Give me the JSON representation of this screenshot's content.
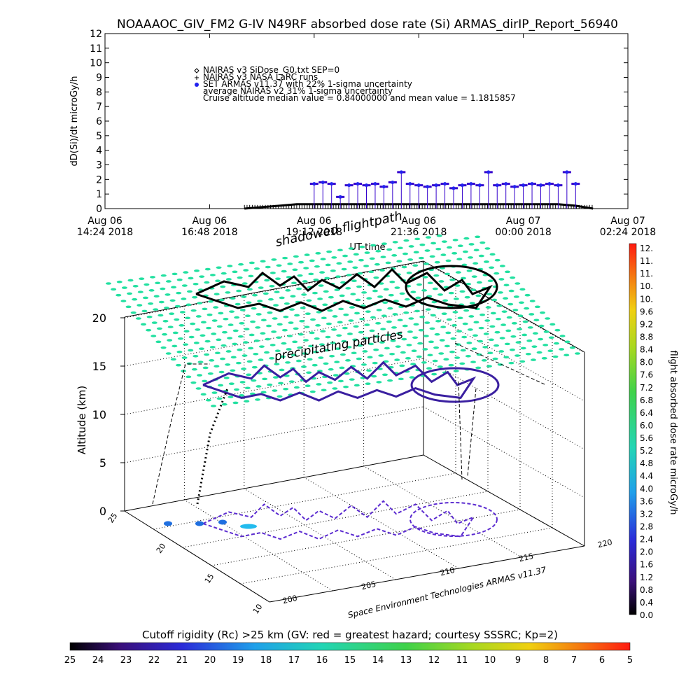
{
  "header": {
    "title": "NOAAAOC_GIV_FM2 G-IV    N49RF  absorbed dose rate (Si) ARMAS_dirIP_Report_56940"
  },
  "top_chart": {
    "ylabel": "dD(Si)/dt microGy/h",
    "xlabel": "UT time",
    "legend": {
      "lines": [
        "NAIRAS v3 SiDose_G0.txt SEP=0",
        "NAIRAS v3 NASA LaRC runs",
        "SET ARMAS v11.37 with 22% 1-sigma uncertainty",
        "average NAIRAS v2 31% 1-sigma uncertainty",
        "Cruise altitude median value = 0.84000000 and mean value = 1.1815857"
      ],
      "symbols": [
        "diamond",
        "plus",
        "filled-circle",
        "",
        ""
      ]
    }
  },
  "chart_data": [
    {
      "type": "scatter",
      "title": "NOAAAOC_GIV_FM2 G-IV    N49RF  absorbed dose rate (Si) ARMAS_dirIP_Report_56940",
      "ylabel": "dD(Si)/dt microGy/h",
      "xlabel": "UT time",
      "ylim": [
        0,
        12
      ],
      "yticks": [
        "0",
        "1",
        "2",
        "3",
        "4",
        "5",
        "6",
        "7",
        "8",
        "9",
        "10",
        "11",
        "12"
      ],
      "xticks": [
        {
          "line1": "Aug 06",
          "line2": "14:24 2018"
        },
        {
          "line1": "Aug 06",
          "line2": "16:48 2018"
        },
        {
          "line1": "Aug 06",
          "line2": "19:12 2018"
        },
        {
          "line1": "Aug 06",
          "line2": "21:36 2018"
        },
        {
          "line1": "Aug 07",
          "line2": "00:00 2018"
        },
        {
          "line1": "Aug 07",
          "line2": "02:24 2018"
        }
      ],
      "x_hours_since_xmin": {
        "range": [
          0,
          12
        ]
      },
      "series": [
        {
          "name": "SET ARMAS v11.37 with 22% 1-sigma uncertainty",
          "color": "#3300cc",
          "marker_color": "#2222ee",
          "x_hours": [
            4.8,
            5.0,
            5.2,
            5.4,
            5.6,
            5.8,
            6.0,
            6.2,
            6.4,
            6.6,
            6.8,
            7.0,
            7.2,
            7.4,
            7.6,
            7.8,
            8.0,
            8.2,
            8.4,
            8.6,
            8.8,
            9.0,
            9.2,
            9.4,
            9.6,
            9.8,
            10.0,
            10.2,
            10.4,
            10.6,
            10.8
          ],
          "y": [
            1.7,
            1.8,
            1.7,
            0.8,
            1.6,
            1.7,
            1.6,
            1.7,
            1.5,
            1.8,
            2.5,
            1.7,
            1.6,
            1.5,
            1.6,
            1.7,
            1.4,
            1.6,
            1.7,
            1.6,
            2.5,
            1.6,
            1.7,
            1.5,
            1.6,
            1.7,
            1.6,
            1.7,
            1.6,
            2.5,
            1.7
          ]
        },
        {
          "name": "NAIRAS v3 SiDose_G0.txt SEP=0",
          "color": "#000000",
          "x_hours": [
            3.2,
            3.6,
            4.0,
            4.4,
            4.8,
            5.2,
            5.6,
            6.0,
            6.4,
            6.8,
            7.2,
            7.6,
            8.0,
            8.4,
            8.8,
            9.2,
            9.6,
            10.0,
            10.4,
            10.8,
            11.2
          ],
          "y": [
            0.0,
            0.1,
            0.2,
            0.3,
            0.3,
            0.3,
            0.3,
            0.3,
            0.3,
            0.3,
            0.3,
            0.3,
            0.3,
            0.3,
            0.3,
            0.3,
            0.3,
            0.3,
            0.3,
            0.2,
            0.0
          ]
        }
      ]
    },
    {
      "type": "scatter",
      "title": "",
      "zlabel": "Altitude (km)",
      "zticks": [
        "0",
        "5",
        "10",
        "15",
        "20"
      ],
      "xticks": [
        "200",
        "205",
        "210",
        "215",
        "220"
      ],
      "yticks": [
        "10",
        "15",
        "20",
        "25"
      ],
      "annotations": [
        "shadowed flightpath",
        "precipitating particles"
      ],
      "credit": "Space Environment Technologies ARMAS v11.37"
    },
    {
      "type": "heatmap",
      "title": "flight absorbed dose rate microGy/h",
      "colorbar": "vertical",
      "ticks": [
        "0.0",
        "0.4",
        "0.8",
        "1.2",
        "1.6",
        "2.0",
        "2.4",
        "2.8",
        "3.2",
        "3.6",
        "4.0",
        "4.4",
        "4.8",
        "5.2",
        "5.6",
        "6.0",
        "6.4",
        "6.8",
        "7.2",
        "7.6",
        "8.0",
        "8.4",
        "8.8",
        "9.2",
        "9.6",
        "10.",
        "10.",
        "11.",
        "11.",
        "12."
      ]
    },
    {
      "type": "heatmap",
      "title": "Cutoff rigidity (Rc) >25 km (GV: red = greatest hazard; courtesy SSSRC; Kp=2)",
      "colorbar": "horizontal",
      "ticks": [
        "25",
        "24",
        "23",
        "22",
        "21",
        "20",
        "19",
        "18",
        "17",
        "16",
        "15",
        "14",
        "13",
        "12",
        "11",
        "10",
        "9",
        "8",
        "7",
        "6",
        "5"
      ]
    }
  ],
  "view3d": {
    "shadow_label": "shadowed flightpath",
    "precip_label": "precipitating particles",
    "zlabel": "Altitude (km)",
    "credit": "Space Environment Technologies ARMAS v11.37",
    "colors": {
      "precip": "#22e0a0",
      "path_low": "#3a1fa0",
      "path_high": "#5b2bd0",
      "hotspot": "#22bbee"
    }
  },
  "colorbar_v": {
    "label": "flight absorbed dose rate microGy/h"
  },
  "colorbar_h": {
    "title": "Cutoff rigidity (Rc) >25 km (GV: red = greatest hazard; courtesy SSSRC; Kp=2)"
  }
}
